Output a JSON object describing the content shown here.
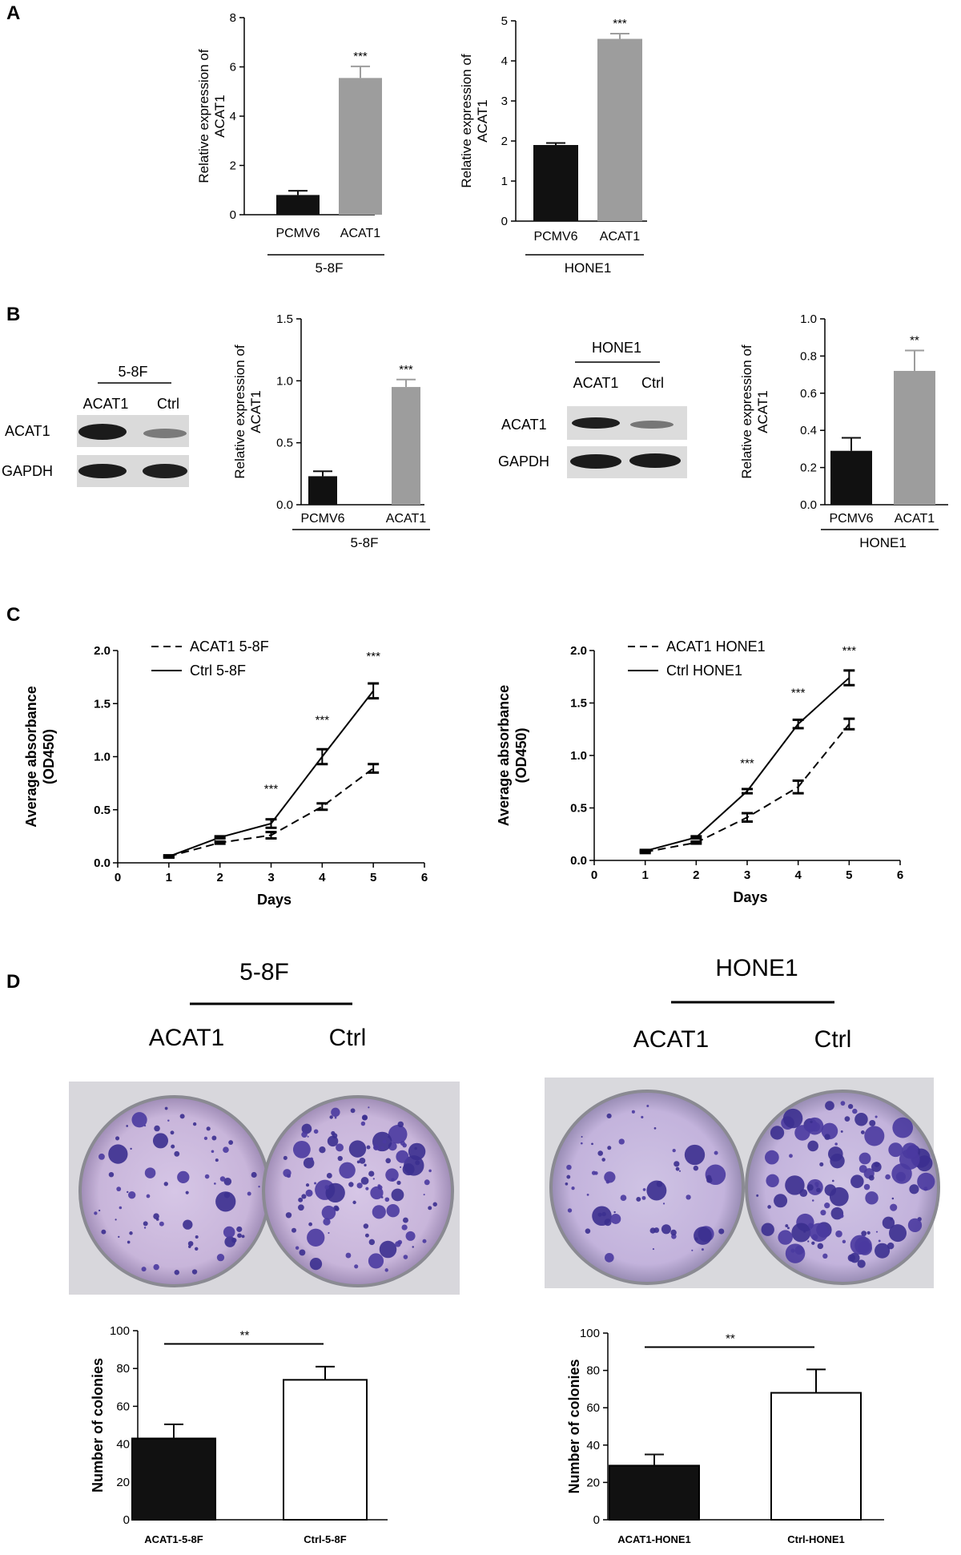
{
  "panels": {
    "A": "A",
    "B": "B",
    "C": "C",
    "D": "D"
  },
  "chart_data": [
    {
      "id": "A1",
      "type": "bar",
      "panel": "A",
      "ylabel": "Relative expression of ACAT1",
      "ylabel_lines": [
        "Relative expression of",
        "ACAT1"
      ],
      "ylim": [
        0,
        8
      ],
      "yticks": [
        0,
        2,
        4,
        6,
        8
      ],
      "categories": [
        "PCMV6",
        "ACAT1"
      ],
      "group": "5-8F",
      "values": [
        0.8,
        5.55
      ],
      "errors": [
        0.17,
        0.47
      ],
      "colors": [
        "#111111",
        "#9d9d9d"
      ],
      "significance": {
        "label": "***"
      }
    },
    {
      "id": "A2",
      "type": "bar",
      "panel": "A",
      "ylabel": "Relative expression of ACAT1",
      "ylabel_lines": [
        "Relative expression of",
        "ACAT1"
      ],
      "ylim": [
        0,
        5
      ],
      "yticks": [
        0,
        1,
        2,
        3,
        4,
        5
      ],
      "categories": [
        "PCMV6",
        "ACAT1"
      ],
      "group": "HONE1",
      "values": [
        1.9,
        4.55
      ],
      "errors": [
        0.05,
        0.13
      ],
      "colors": [
        "#111111",
        "#9d9d9d"
      ],
      "significance": {
        "label": "***"
      }
    },
    {
      "id": "B1",
      "type": "bar",
      "panel": "B",
      "ylabel": "Relative expression of ACAT1",
      "ylabel_lines": [
        "Relative expression of",
        "ACAT1"
      ],
      "ylim": [
        0,
        1.5
      ],
      "yticks": [
        "0.0",
        "0.5",
        "1.0",
        "1.5"
      ],
      "categories": [
        "PCMV6",
        "ACAT1"
      ],
      "group": "5-8F",
      "values": [
        0.23,
        0.95
      ],
      "errors": [
        0.04,
        0.06
      ],
      "colors": [
        "#111111",
        "#9d9d9d"
      ],
      "significance": {
        "label": "***"
      }
    },
    {
      "id": "B2",
      "type": "bar",
      "panel": "B",
      "ylabel": "Relative expression of ACAT1",
      "ylabel_lines": [
        "Relative expression of",
        "ACAT1"
      ],
      "ylim": [
        0,
        1.0
      ],
      "yticks": [
        "0.0",
        "0.2",
        "0.4",
        "0.6",
        "0.8",
        "1.0"
      ],
      "categories": [
        "PCMV6",
        "ACAT1"
      ],
      "group": "HONE1",
      "values": [
        0.29,
        0.72
      ],
      "errors": [
        0.07,
        0.11
      ],
      "colors": [
        "#111111",
        "#9d9d9d"
      ],
      "significance": {
        "label": "**"
      }
    },
    {
      "id": "C1",
      "type": "line",
      "panel": "C",
      "xlabel": "Days",
      "ylabel": "Average absorbance (OD450)",
      "ylabel_lines": [
        "Average absorbance",
        "(OD450)"
      ],
      "xlim": [
        0,
        6
      ],
      "ylim": [
        0,
        2.0
      ],
      "xticks": [
        0,
        1,
        2,
        3,
        4,
        5,
        6
      ],
      "yticks": [
        "0.0",
        "0.5",
        "1.0",
        "1.5",
        "2.0"
      ],
      "x": [
        1,
        2,
        3,
        4,
        5
      ],
      "series": [
        {
          "name": "ACAT1 5-8F",
          "dash": true,
          "values": [
            0.06,
            0.19,
            0.26,
            0.53,
            0.89
          ],
          "errors": [
            0.01,
            0.01,
            0.03,
            0.03,
            0.04
          ]
        },
        {
          "name": "Ctrl 5-8F",
          "dash": false,
          "values": [
            0.06,
            0.24,
            0.37,
            1.0,
            1.62
          ],
          "errors": [
            0.01,
            0.01,
            0.04,
            0.07,
            0.07
          ]
        }
      ],
      "annotations": [
        {
          "x": 3,
          "y": 0.66,
          "label": "***"
        },
        {
          "x": 4,
          "y": 1.31,
          "label": "***"
        },
        {
          "x": 5,
          "y": 1.91,
          "label": "***"
        }
      ]
    },
    {
      "id": "C2",
      "type": "line",
      "panel": "C",
      "xlabel": "Days",
      "ylabel": "Average absorbance (OD450)",
      "ylabel_lines": [
        "Average absorbance",
        "(OD450)"
      ],
      "xlim": [
        0,
        6
      ],
      "ylim": [
        0,
        2.0
      ],
      "xticks": [
        0,
        1,
        2,
        3,
        4,
        5,
        6
      ],
      "yticks": [
        "0.0",
        "0.5",
        "1.0",
        "1.5",
        "2.0"
      ],
      "x": [
        1,
        2,
        3,
        4,
        5
      ],
      "series": [
        {
          "name": "ACAT1 HONE1",
          "dash": true,
          "values": [
            0.08,
            0.17,
            0.41,
            0.7,
            1.3
          ],
          "errors": [
            0.01,
            0.01,
            0.04,
            0.06,
            0.05
          ]
        },
        {
          "name": "Ctrl HONE1",
          "dash": false,
          "values": [
            0.09,
            0.22,
            0.66,
            1.3,
            1.74
          ],
          "errors": [
            0.01,
            0.01,
            0.02,
            0.04,
            0.07
          ]
        }
      ],
      "annotations": [
        {
          "x": 3,
          "y": 0.89,
          "label": "***"
        },
        {
          "x": 4,
          "y": 1.56,
          "label": "***"
        },
        {
          "x": 5,
          "y": 1.96,
          "label": "***"
        }
      ]
    },
    {
      "id": "D1",
      "type": "bar",
      "panel": "D",
      "ylabel": "Number of colonies",
      "ylim": [
        0,
        100
      ],
      "yticks": [
        0,
        20,
        40,
        60,
        80,
        100
      ],
      "categories": [
        "ACAT1-5-8F",
        "Ctrl-5-8F"
      ],
      "values": [
        43,
        74
      ],
      "errors": [
        7.5,
        7
      ],
      "colors": [
        "#111111",
        "#ffffff"
      ],
      "significance": {
        "label": "**"
      }
    },
    {
      "id": "D2",
      "type": "bar",
      "panel": "D",
      "ylabel": "Number of colonies",
      "ylim": [
        0,
        100
      ],
      "yticks": [
        0,
        20,
        40,
        60,
        80,
        100
      ],
      "categories": [
        "ACAT1-HONE1",
        "Ctrl-HONE1"
      ],
      "values": [
        29,
        68
      ],
      "errors": [
        6,
        12.5
      ],
      "colors": [
        "#111111",
        "#ffffff"
      ],
      "significance": {
        "label": "**"
      }
    }
  ],
  "blots": [
    {
      "cell": "5-8F",
      "columns": [
        "ACAT1",
        "Ctrl"
      ],
      "rows": [
        "ACAT1",
        "GAPDH"
      ]
    },
    {
      "cell": "HONE1",
      "columns": [
        "ACAT1",
        "Ctrl"
      ],
      "rows": [
        "ACAT1",
        "GAPDH"
      ]
    }
  ],
  "dishes": [
    {
      "cell": "5-8F",
      "labels": [
        "ACAT1",
        "Ctrl"
      ]
    },
    {
      "cell": "HONE1",
      "labels": [
        "ACAT1",
        "Ctrl"
      ]
    }
  ]
}
